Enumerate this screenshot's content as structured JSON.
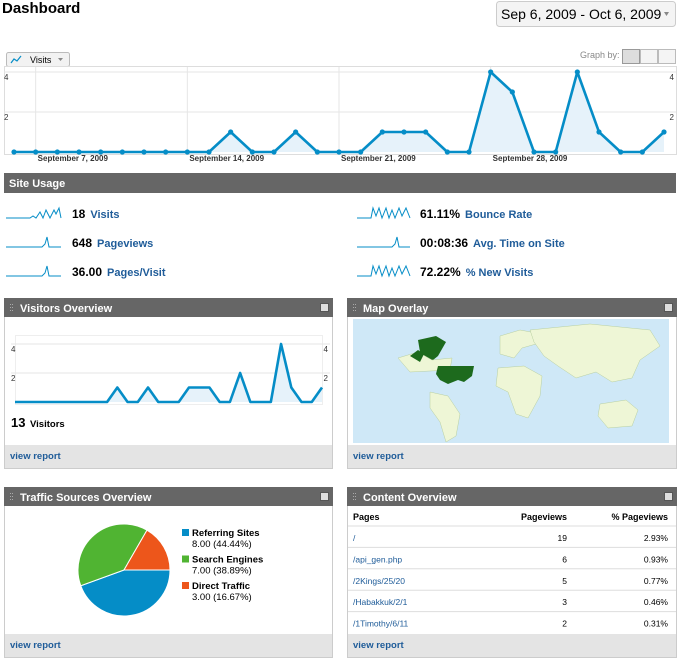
{
  "header": {
    "title": "Dashboard",
    "date_range": "Sep 6, 2009 - Oct 6, 2009"
  },
  "main_chart": {
    "type": "line",
    "metric": "Visits",
    "graph_by": "Graph by:",
    "categories": [
      null,
      "September 7, 2009",
      null,
      null,
      null,
      null,
      null,
      null,
      "September 14, 2009",
      null,
      null,
      null,
      null,
      null,
      null,
      "September 21, 2009",
      null,
      null,
      null,
      null,
      null,
      null,
      "September 28, 2009",
      null,
      null,
      null,
      null,
      null,
      null,
      null,
      null
    ],
    "values": [
      0,
      0,
      0,
      0,
      0,
      0,
      0,
      0,
      0,
      0,
      1,
      0,
      0,
      1,
      0,
      0,
      0,
      1,
      1,
      1,
      0,
      0,
      4,
      3,
      0,
      0,
      4,
      1,
      0,
      0,
      1
    ],
    "ylim": [
      0,
      4
    ],
    "yticks": [
      2,
      4
    ],
    "color": "#058dc7",
    "grid": true
  },
  "site_usage": {
    "title": "Site Usage",
    "metrics": [
      {
        "value": "18",
        "label": "Visits"
      },
      {
        "value": "648",
        "label": "Pageviews"
      },
      {
        "value": "36.00",
        "label": "Pages/Visit"
      },
      {
        "value": "61.11%",
        "label": "Bounce Rate"
      },
      {
        "value": "00:08:36",
        "label": "Avg. Time on Site"
      },
      {
        "value": "72.22%",
        "label": "% New Visits"
      }
    ]
  },
  "visitors_overview": {
    "title": "Visitors Overview",
    "chart": {
      "type": "line",
      "values": [
        0,
        0,
        0,
        0,
        0,
        0,
        0,
        0,
        0,
        0,
        1,
        0,
        0,
        1,
        0,
        0,
        0,
        1,
        1,
        1,
        0,
        0,
        2,
        0,
        0,
        0,
        4,
        1,
        0,
        0,
        1
      ],
      "ylim": [
        0,
        4
      ],
      "yticks": [
        2,
        4
      ],
      "color": "#058dc7"
    },
    "total": "13",
    "total_label": "Visitors",
    "link": "view report"
  },
  "map_overlay": {
    "title": "Map Overlay",
    "link": "view report"
  },
  "traffic_sources": {
    "title": "Traffic Sources Overview",
    "chart": {
      "type": "pie",
      "categories": [
        "Referring Sites",
        "Search Engines",
        "Direct Traffic"
      ],
      "values": [
        8,
        7,
        3
      ],
      "value_labels": [
        "8.00 (44.44%)",
        "7.00 (38.89%)",
        "3.00 (16.67%)"
      ],
      "colors": [
        "#058dc7",
        "#50b432",
        "#ed561b"
      ]
    },
    "link": "view report"
  },
  "content_overview": {
    "title": "Content Overview",
    "columns": [
      "Pages",
      "Pageviews",
      "% Pageviews"
    ],
    "rows": [
      [
        "/",
        "19",
        "2.93%"
      ],
      [
        "/api_gen.php",
        "6",
        "0.93%"
      ],
      [
        "/2Kings/25/20",
        "5",
        "0.77%"
      ],
      [
        "/Habakkuk/2/1",
        "3",
        "0.46%"
      ],
      [
        "/1Timothy/6/11",
        "2",
        "0.31%"
      ]
    ],
    "link": "view report"
  }
}
